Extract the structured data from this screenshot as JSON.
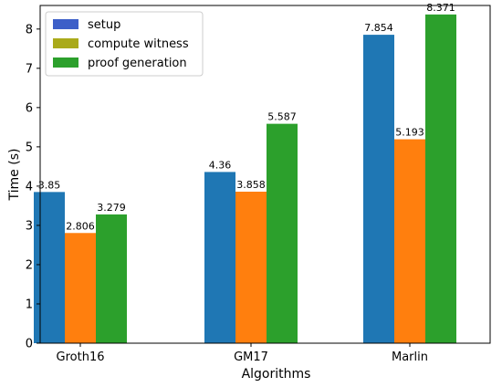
{
  "chart_data": {
    "type": "bar",
    "categories": [
      "Groth16",
      "GM17",
      "Marlin"
    ],
    "series": [
      {
        "name": "setup",
        "values": [
          3.85,
          4.36,
          7.854
        ],
        "color": "#1f77b4",
        "legend_color": "#3d5fc8"
      },
      {
        "name": "compute witness",
        "values": [
          2.806,
          3.858,
          5.193
        ],
        "color": "#ff7f0e",
        "legend_color": "#aaaa1a"
      },
      {
        "name": "proof generation",
        "values": [
          3.279,
          5.587,
          8.371
        ],
        "color": "#2ca02c",
        "legend_color": "#2ca02c"
      }
    ],
    "data_labels": [
      [
        "3.85",
        "4.36",
        "7.854"
      ],
      [
        "2.806",
        "3.858",
        "5.193"
      ],
      [
        "3.279",
        "5.587",
        "8.371"
      ]
    ],
    "xlabel": "Algorithms",
    "ylabel": "Time (s)",
    "ylim": [
      0,
      8.6
    ],
    "yticks": [
      "0",
      "1",
      "2",
      "3",
      "4",
      "5",
      "6",
      "7",
      "8"
    ],
    "grid": false,
    "legend_position": "top-left"
  }
}
